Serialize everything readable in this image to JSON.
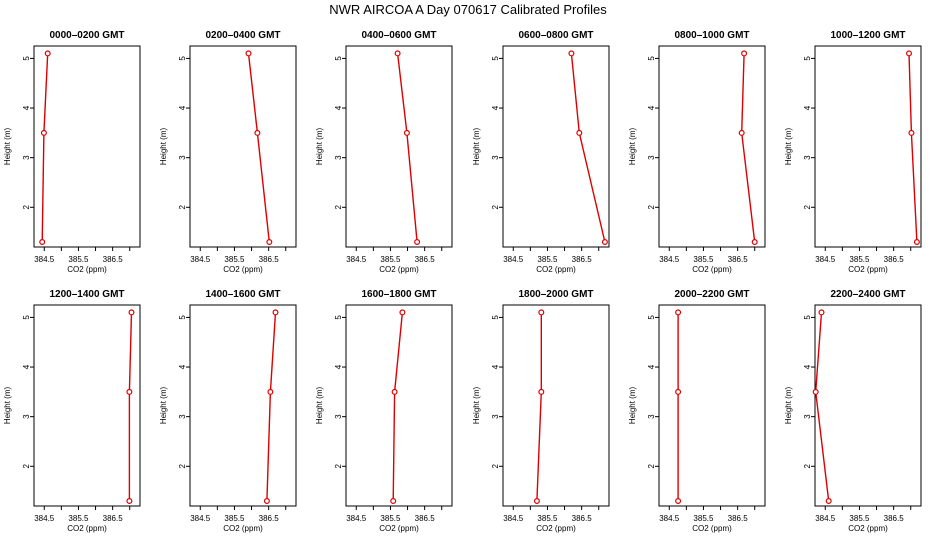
{
  "title": "NWR AIRCOA A  Day 070617  Calibrated Profiles",
  "colors": {
    "line": "#dd0000",
    "axis": "#000000",
    "background": "#ffffff"
  },
  "chart_data": [
    {
      "type": "line",
      "title": "0000–0200 GMT",
      "xlabel": "CO2 (ppm)",
      "ylabel": "Height (m)",
      "x_ticks": [
        "384.5",
        "385.5",
        "386.5"
      ],
      "y_ticks": [
        "2",
        "3",
        "4",
        "5"
      ],
      "xlim": [
        384.2,
        387.3
      ],
      "ylim": [
        1.2,
        5.25
      ],
      "series": [
        {
          "x": [
            384.44,
            384.49,
            384.6
          ],
          "y": [
            1.3,
            3.5,
            5.1
          ]
        }
      ]
    },
    {
      "type": "line",
      "title": "0200–0400 GMT",
      "xlabel": "CO2 (ppm)",
      "ylabel": "Height (m)",
      "x_ticks": [
        "384.5",
        "385.5",
        "386.5"
      ],
      "y_ticks": [
        "2",
        "3",
        "4",
        "5"
      ],
      "xlim": [
        384.2,
        387.3
      ],
      "ylim": [
        1.2,
        5.25
      ],
      "series": [
        {
          "x": [
            386.52,
            386.17,
            385.91
          ],
          "y": [
            1.3,
            3.5,
            5.1
          ]
        }
      ]
    },
    {
      "type": "line",
      "title": "0400–0600 GMT",
      "xlabel": "CO2 (ppm)",
      "ylabel": "Height (m)",
      "x_ticks": [
        "384.5",
        "385.5",
        "386.5"
      ],
      "y_ticks": [
        "2",
        "3",
        "4",
        "5"
      ],
      "xlim": [
        384.2,
        387.3
      ],
      "ylim": [
        1.2,
        5.25
      ],
      "series": [
        {
          "x": [
            386.28,
            385.98,
            385.71
          ],
          "y": [
            1.3,
            3.5,
            5.1
          ]
        }
      ]
    },
    {
      "type": "line",
      "title": "0600–0800 GMT",
      "xlabel": "CO2 (ppm)",
      "ylabel": "Height (m)",
      "x_ticks": [
        "384.5",
        "385.5",
        "386.5"
      ],
      "y_ticks": [
        "2",
        "3",
        "4",
        "5"
      ],
      "xlim": [
        384.2,
        387.3
      ],
      "ylim": [
        1.2,
        5.25
      ],
      "series": [
        {
          "x": [
            387.18,
            386.43,
            386.2
          ],
          "y": [
            1.3,
            3.5,
            5.1
          ]
        }
      ]
    },
    {
      "type": "line",
      "title": "0800–1000 GMT",
      "xlabel": "CO2 (ppm)",
      "ylabel": "Height (m)",
      "x_ticks": [
        "384.5",
        "385.5",
        "386.5"
      ],
      "y_ticks": [
        "2",
        "3",
        "4",
        "5"
      ],
      "xlim": [
        384.2,
        387.3
      ],
      "ylim": [
        1.2,
        5.25
      ],
      "series": [
        {
          "x": [
            387.0,
            386.62,
            386.69
          ],
          "y": [
            1.3,
            3.5,
            5.1
          ]
        }
      ]
    },
    {
      "type": "line",
      "title": "1000–1200 GMT",
      "xlabel": "CO2 (ppm)",
      "ylabel": "Height (m)",
      "x_ticks": [
        "384.5",
        "385.5",
        "386.5"
      ],
      "y_ticks": [
        "2",
        "3",
        "4",
        "5"
      ],
      "xlim": [
        384.2,
        387.3
      ],
      "ylim": [
        1.2,
        5.25
      ],
      "series": [
        {
          "x": [
            387.18,
            387.02,
            386.95
          ],
          "y": [
            1.3,
            3.5,
            5.1
          ]
        }
      ]
    },
    {
      "type": "line",
      "title": "1200–1400 GMT",
      "xlabel": "CO2 (ppm)",
      "ylabel": "Height (m)",
      "x_ticks": [
        "384.5",
        "385.5",
        "386.5"
      ],
      "y_ticks": [
        "2",
        "3",
        "4",
        "5"
      ],
      "xlim": [
        384.2,
        387.3
      ],
      "ylim": [
        1.2,
        5.25
      ],
      "series": [
        {
          "x": [
            386.99,
            386.99,
            387.05
          ],
          "y": [
            1.3,
            3.5,
            5.1
          ]
        }
      ]
    },
    {
      "type": "line",
      "title": "1400–1600 GMT",
      "xlabel": "CO2 (ppm)",
      "ylabel": "Height (m)",
      "x_ticks": [
        "384.5",
        "385.5",
        "386.5"
      ],
      "y_ticks": [
        "2",
        "3",
        "4",
        "5"
      ],
      "xlim": [
        384.2,
        387.3
      ],
      "ylim": [
        1.2,
        5.25
      ],
      "series": [
        {
          "x": [
            386.45,
            386.55,
            386.7
          ],
          "y": [
            1.3,
            3.5,
            5.1
          ]
        }
      ]
    },
    {
      "type": "line",
      "title": "1600–1800 GMT",
      "xlabel": "CO2 (ppm)",
      "ylabel": "Height (m)",
      "x_ticks": [
        "384.5",
        "385.5",
        "386.5"
      ],
      "y_ticks": [
        "2",
        "3",
        "4",
        "5"
      ],
      "xlim": [
        384.2,
        387.3
      ],
      "ylim": [
        1.2,
        5.25
      ],
      "series": [
        {
          "x": [
            385.58,
            385.62,
            385.85
          ],
          "y": [
            1.3,
            3.5,
            5.1
          ]
        }
      ]
    },
    {
      "type": "line",
      "title": "1800–2000 GMT",
      "xlabel": "CO2 (ppm)",
      "ylabel": "Height (m)",
      "x_ticks": [
        "384.5",
        "385.5",
        "386.5"
      ],
      "y_ticks": [
        "2",
        "3",
        "4",
        "5"
      ],
      "xlim": [
        384.2,
        387.3
      ],
      "ylim": [
        1.2,
        5.25
      ],
      "series": [
        {
          "x": [
            385.19,
            385.32,
            385.32
          ],
          "y": [
            1.3,
            3.5,
            5.1
          ]
        }
      ]
    },
    {
      "type": "line",
      "title": "2000–2200 GMT",
      "xlabel": "CO2 (ppm)",
      "ylabel": "Height (m)",
      "x_ticks": [
        "384.5",
        "385.5",
        "386.5"
      ],
      "y_ticks": [
        "2",
        "3",
        "4",
        "5"
      ],
      "xlim": [
        384.2,
        387.3
      ],
      "ylim": [
        1.2,
        5.25
      ],
      "series": [
        {
          "x": [
            384.76,
            384.76,
            384.76
          ],
          "y": [
            1.3,
            3.5,
            5.1
          ]
        }
      ]
    },
    {
      "type": "line",
      "title": "2200–2400 GMT",
      "xlabel": "CO2 (ppm)",
      "ylabel": "Height (m)",
      "x_ticks": [
        "384.5",
        "385.5",
        "386.5"
      ],
      "y_ticks": [
        "2",
        "3",
        "4",
        "5"
      ],
      "xlim": [
        384.2,
        387.3
      ],
      "ylim": [
        1.2,
        5.25
      ],
      "series": [
        {
          "x": [
            384.6,
            384.22,
            384.39
          ],
          "y": [
            1.3,
            3.5,
            5.1
          ]
        }
      ]
    }
  ]
}
